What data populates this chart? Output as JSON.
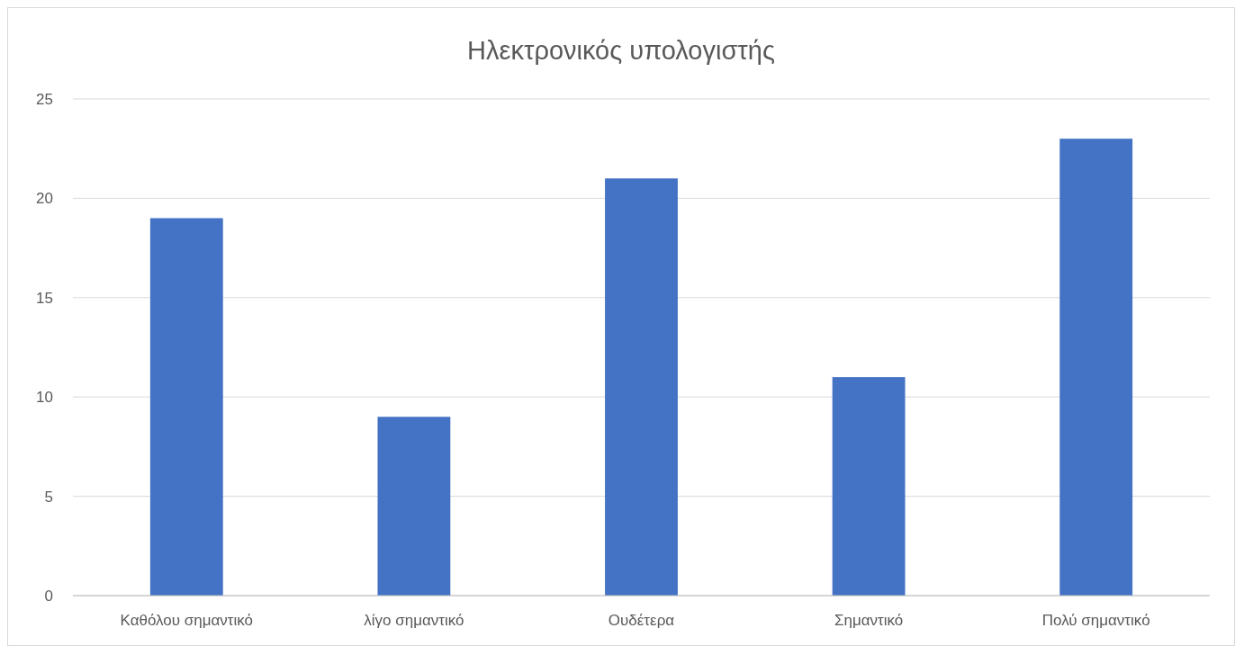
{
  "chart_data": {
    "type": "bar",
    "title": "Ηλεκτρονικός υπολογιστής",
    "categories": [
      "Καθόλου σημαντικό",
      "λίγο σημαντικό",
      "Ουδέτερα",
      "Σημαντικό",
      "Πολύ σημαντικό"
    ],
    "values": [
      19,
      9,
      21,
      11,
      23
    ],
    "color": "#4472c4",
    "ylim": [
      0,
      25
    ],
    "yticks": [
      0,
      5,
      10,
      15,
      20,
      25
    ],
    "grid": true
  }
}
